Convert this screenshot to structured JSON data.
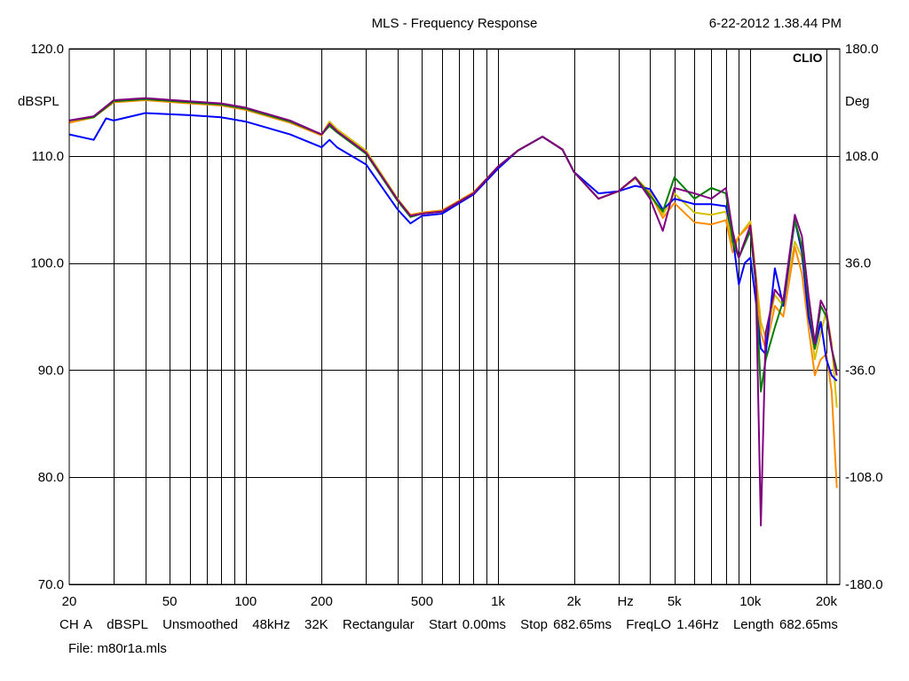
{
  "header": {
    "title": "MLS - Frequency Response",
    "timestamp": "6-22-2012 1.38.44 PM",
    "brand": "CLIO"
  },
  "footer": {
    "items": [
      "CH A",
      "dBSPL",
      "Unsmoothed",
      "48kHz",
      "32K",
      "Rectangular",
      "Start 0.00ms",
      "Stop 682.65ms",
      "FreqLO 1.46Hz",
      "Length 682.65ms"
    ],
    "file": "File: m80r1a.mls"
  },
  "chart_data": {
    "type": "line",
    "title": "MLS - Frequency Response",
    "xlabel": "Hz",
    "ylabel": "dBSPL",
    "y2label": "Deg",
    "x_scale": "log",
    "xlim": [
      20,
      22600
    ],
    "ylim": [
      70,
      120
    ],
    "y2lim": [
      -180,
      180
    ],
    "grid": true,
    "x_tick_labels": [
      {
        "value": 20,
        "label": "20"
      },
      {
        "value": 50,
        "label": "50"
      },
      {
        "value": 100,
        "label": "100"
      },
      {
        "value": 200,
        "label": "200"
      },
      {
        "value": 500,
        "label": "500"
      },
      {
        "value": 1000,
        "label": "1k"
      },
      {
        "value": 2000,
        "label": "2k"
      },
      {
        "value": 5000,
        "label": "5k"
      },
      {
        "value": 10000,
        "label": "10k"
      },
      {
        "value": 20000,
        "label": "20k"
      }
    ],
    "x_unit_label": {
      "value": 3200,
      "label": "Hz"
    },
    "y_ticks": [
      {
        "value": 120,
        "label": "120.0"
      },
      {
        "value": 110,
        "label": "110.0"
      },
      {
        "value": 100,
        "label": "100.0"
      },
      {
        "value": 90,
        "label": "90.0"
      },
      {
        "value": 80,
        "label": "80.0"
      },
      {
        "value": 70,
        "label": "70.0"
      }
    ],
    "y2_ticks": [
      {
        "value": 180,
        "label": "180.0"
      },
      {
        "value": 108,
        "label": "108.0"
      },
      {
        "value": 36,
        "label": "36.0"
      },
      {
        "value": -36,
        "label": "-36.0"
      },
      {
        "value": -108,
        "label": "-108.0"
      },
      {
        "value": -180,
        "label": "-180.0"
      }
    ],
    "series": [
      {
        "color": "#d4c000",
        "points": [
          [
            20,
            113.1
          ],
          [
            25,
            113.6
          ],
          [
            30,
            115.2
          ],
          [
            40,
            115.3
          ],
          [
            60,
            115.0
          ],
          [
            80,
            114.8
          ],
          [
            100,
            114.4
          ],
          [
            150,
            113.2
          ],
          [
            200,
            112.0
          ],
          [
            215,
            113.2
          ],
          [
            230,
            112.5
          ],
          [
            300,
            110.5
          ],
          [
            400,
            106.0
          ],
          [
            450,
            104.5
          ],
          [
            500,
            104.7
          ],
          [
            600,
            104.9
          ],
          [
            800,
            106.6
          ],
          [
            1000,
            109.0
          ],
          [
            1200,
            110.5
          ],
          [
            1500,
            111.8
          ],
          [
            1800,
            110.6
          ],
          [
            2000,
            108.5
          ],
          [
            2500,
            106.0
          ],
          [
            3000,
            106.7
          ],
          [
            3500,
            108.0
          ],
          [
            4000,
            106.6
          ],
          [
            4500,
            104.5
          ],
          [
            5000,
            106.5
          ],
          [
            6000,
            104.7
          ],
          [
            7000,
            104.5
          ],
          [
            8000,
            104.8
          ],
          [
            8500,
            101.5
          ],
          [
            9000,
            102.5
          ],
          [
            10000,
            103.9
          ],
          [
            10500,
            99.0
          ],
          [
            11000,
            94.5
          ],
          [
            11500,
            93.0
          ],
          [
            12500,
            97.0
          ],
          [
            13500,
            96.0
          ],
          [
            15000,
            102.0
          ],
          [
            16000,
            100.5
          ],
          [
            17000,
            96.0
          ],
          [
            18000,
            91.0
          ],
          [
            19000,
            93.5
          ],
          [
            20000,
            95.5
          ],
          [
            21000,
            92.5
          ],
          [
            22000,
            86.5
          ]
        ]
      },
      {
        "color": "#ff8c00",
        "points": [
          [
            20,
            113.1
          ],
          [
            25,
            113.6
          ],
          [
            30,
            115.0
          ],
          [
            40,
            115.2
          ],
          [
            60,
            114.9
          ],
          [
            80,
            114.7
          ],
          [
            100,
            114.3
          ],
          [
            150,
            113.1
          ],
          [
            200,
            111.9
          ],
          [
            215,
            113.0
          ],
          [
            230,
            112.3
          ],
          [
            300,
            110.3
          ],
          [
            400,
            105.8
          ],
          [
            450,
            104.5
          ],
          [
            500,
            104.7
          ],
          [
            600,
            104.9
          ],
          [
            800,
            106.6
          ],
          [
            1000,
            109.0
          ],
          [
            1200,
            110.5
          ],
          [
            1500,
            111.8
          ],
          [
            1800,
            110.6
          ],
          [
            2000,
            108.5
          ],
          [
            2500,
            106.0
          ],
          [
            3000,
            106.7
          ],
          [
            3500,
            107.9
          ],
          [
            4000,
            106.5
          ],
          [
            4500,
            104.2
          ],
          [
            5000,
            105.6
          ],
          [
            6000,
            103.8
          ],
          [
            7000,
            103.6
          ],
          [
            8000,
            104.0
          ],
          [
            8500,
            101.0
          ],
          [
            9000,
            102.5
          ],
          [
            10000,
            103.6
          ],
          [
            10500,
            98.5
          ],
          [
            11000,
            93.5
          ],
          [
            11500,
            92.0
          ],
          [
            12500,
            96.0
          ],
          [
            13500,
            95.0
          ],
          [
            15000,
            101.5
          ],
          [
            16000,
            99.0
          ],
          [
            17000,
            94.0
          ],
          [
            18000,
            89.5
          ],
          [
            19000,
            91.0
          ],
          [
            20000,
            91.5
          ],
          [
            21000,
            88.0
          ],
          [
            22000,
            79.0
          ]
        ]
      },
      {
        "color": "#0000ff",
        "points": [
          [
            20,
            112.0
          ],
          [
            25,
            111.5
          ],
          [
            28,
            113.5
          ],
          [
            30,
            113.3
          ],
          [
            40,
            114.0
          ],
          [
            60,
            113.8
          ],
          [
            80,
            113.6
          ],
          [
            100,
            113.2
          ],
          [
            150,
            112.0
          ],
          [
            200,
            110.8
          ],
          [
            215,
            111.5
          ],
          [
            230,
            110.8
          ],
          [
            300,
            109.2
          ],
          [
            400,
            105.0
          ],
          [
            450,
            103.7
          ],
          [
            500,
            104.4
          ],
          [
            600,
            104.6
          ],
          [
            800,
            106.4
          ],
          [
            1000,
            108.8
          ],
          [
            1200,
            110.5
          ],
          [
            1500,
            111.8
          ],
          [
            1800,
            110.6
          ],
          [
            2000,
            108.5
          ],
          [
            2500,
            106.5
          ],
          [
            3000,
            106.7
          ],
          [
            3500,
            107.2
          ],
          [
            4000,
            106.9
          ],
          [
            4500,
            105.0
          ],
          [
            5000,
            106.0
          ],
          [
            6000,
            105.5
          ],
          [
            7000,
            105.5
          ],
          [
            8000,
            105.3
          ],
          [
            8500,
            102.5
          ],
          [
            9000,
            98.0
          ],
          [
            9500,
            100.0
          ],
          [
            10000,
            100.5
          ],
          [
            10500,
            96.5
          ],
          [
            11000,
            92.0
          ],
          [
            11500,
            91.5
          ],
          [
            12500,
            99.5
          ],
          [
            13500,
            96.0
          ],
          [
            15000,
            104.0
          ],
          [
            16000,
            101.0
          ],
          [
            17000,
            95.0
          ],
          [
            18000,
            92.0
          ],
          [
            19000,
            94.5
          ],
          [
            20000,
            91.0
          ],
          [
            21000,
            89.5
          ],
          [
            22000,
            89.0
          ]
        ]
      },
      {
        "color": "#008000",
        "points": [
          [
            20,
            113.3
          ],
          [
            25,
            113.6
          ],
          [
            30,
            115.1
          ],
          [
            40,
            115.3
          ],
          [
            60,
            115.0
          ],
          [
            80,
            114.8
          ],
          [
            100,
            114.4
          ],
          [
            150,
            113.2
          ],
          [
            200,
            112.0
          ],
          [
            215,
            112.8
          ],
          [
            230,
            112.2
          ],
          [
            300,
            110.2
          ],
          [
            400,
            105.8
          ],
          [
            450,
            104.3
          ],
          [
            500,
            104.6
          ],
          [
            600,
            104.8
          ],
          [
            800,
            106.5
          ],
          [
            1000,
            109.0
          ],
          [
            1200,
            110.5
          ],
          [
            1500,
            111.8
          ],
          [
            1800,
            110.6
          ],
          [
            2000,
            108.5
          ],
          [
            2500,
            106.0
          ],
          [
            3000,
            106.7
          ],
          [
            3500,
            108.0
          ],
          [
            4000,
            106.3
          ],
          [
            4500,
            104.8
          ],
          [
            5000,
            108.0
          ],
          [
            6000,
            106.0
          ],
          [
            7000,
            107.0
          ],
          [
            8000,
            106.5
          ],
          [
            8500,
            102.0
          ],
          [
            9000,
            100.5
          ],
          [
            10000,
            103.0
          ],
          [
            10500,
            98.0
          ],
          [
            11000,
            88.0
          ],
          [
            11500,
            91.0
          ],
          [
            12500,
            94.0
          ],
          [
            13500,
            96.5
          ],
          [
            15000,
            104.0
          ],
          [
            16000,
            101.5
          ],
          [
            17000,
            96.5
          ],
          [
            18000,
            92.0
          ],
          [
            19000,
            96.0
          ],
          [
            20000,
            95.0
          ],
          [
            21000,
            92.0
          ],
          [
            22000,
            90.0
          ]
        ]
      },
      {
        "color": "#800080",
        "points": [
          [
            20,
            113.3
          ],
          [
            25,
            113.7
          ],
          [
            30,
            115.2
          ],
          [
            40,
            115.4
          ],
          [
            60,
            115.1
          ],
          [
            80,
            114.9
          ],
          [
            100,
            114.5
          ],
          [
            150,
            113.3
          ],
          [
            200,
            112.0
          ],
          [
            215,
            113.0
          ],
          [
            230,
            112.3
          ],
          [
            300,
            110.3
          ],
          [
            400,
            105.9
          ],
          [
            450,
            104.4
          ],
          [
            500,
            104.6
          ],
          [
            600,
            104.8
          ],
          [
            800,
            106.5
          ],
          [
            1000,
            109.0
          ],
          [
            1200,
            110.5
          ],
          [
            1500,
            111.8
          ],
          [
            1800,
            110.6
          ],
          [
            2000,
            108.5
          ],
          [
            2500,
            106.0
          ],
          [
            3000,
            106.7
          ],
          [
            3500,
            108.0
          ],
          [
            4000,
            106.0
          ],
          [
            4500,
            103.0
          ],
          [
            5000,
            107.0
          ],
          [
            6000,
            106.5
          ],
          [
            7000,
            106.0
          ],
          [
            8000,
            107.0
          ],
          [
            8500,
            103.0
          ],
          [
            9000,
            100.5
          ],
          [
            10000,
            103.5
          ],
          [
            10500,
            98.5
          ],
          [
            11000,
            75.5
          ],
          [
            11500,
            93.5
          ],
          [
            12500,
            97.5
          ],
          [
            13500,
            96.5
          ],
          [
            15000,
            104.5
          ],
          [
            16000,
            102.5
          ],
          [
            17000,
            97.0
          ],
          [
            18000,
            92.5
          ],
          [
            19000,
            96.5
          ],
          [
            20000,
            95.5
          ],
          [
            21000,
            92.0
          ],
          [
            22000,
            89.5
          ]
        ]
      }
    ]
  }
}
